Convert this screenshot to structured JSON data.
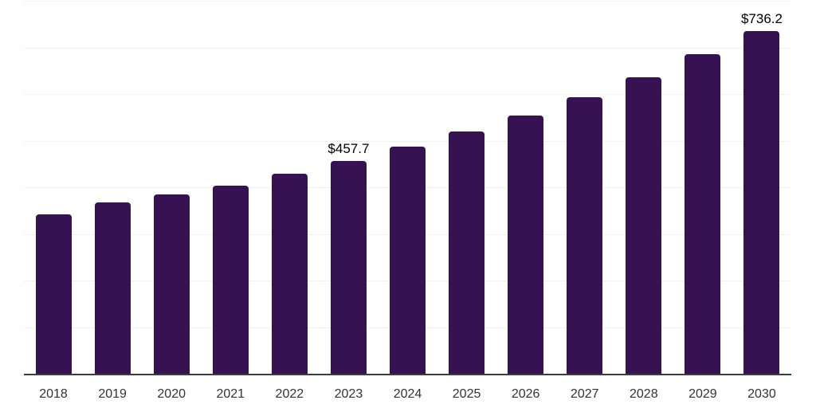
{
  "chart_data": {
    "type": "bar",
    "title": "",
    "xlabel": "",
    "ylabel": "",
    "categories": [
      "2018",
      "2019",
      "2020",
      "2021",
      "2022",
      "2023",
      "2024",
      "2025",
      "2026",
      "2027",
      "2028",
      "2029",
      "2030"
    ],
    "values": [
      343,
      369,
      386,
      405,
      431,
      457.7,
      489,
      521,
      556,
      595,
      638,
      687,
      736.2
    ],
    "value_labels": {
      "2023": "$457.7",
      "2030": "$736.2"
    },
    "ylim": [
      0,
      800
    ],
    "gridline_interval": 100,
    "grid": true,
    "legend": false,
    "y_axis_labels_visible": false,
    "bar_color": "#371252",
    "gridline_color": "#f1f1f1",
    "axis_line_color": "#3d3d3d",
    "tick_label_color": "#333333",
    "value_label_color": "#000000"
  }
}
